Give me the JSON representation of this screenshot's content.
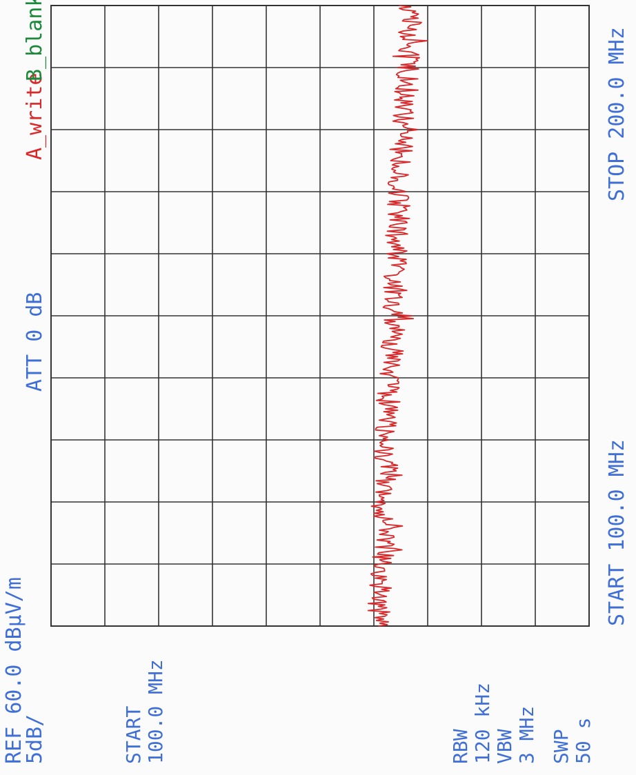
{
  "header": {
    "ref_label": "REF 60.0 dBμV/m",
    "scale_label": "5dB/",
    "att_label": "ATT 0 dB",
    "trace_a_label": "A_write",
    "trace_b_label": "B_blank"
  },
  "left_info": {
    "start_label": "START",
    "start_value": "100.0 MHz",
    "rbw_label": "RBW",
    "rbw_value": "120 kHz",
    "vbw_label": "VBW",
    "vbw_value": "3 MHz",
    "swp_label": "SWP",
    "swp_value": "50 s"
  },
  "bottom_axis": {
    "start_text": "START 100.0 MHz",
    "stop_text": "STOP 200.0 MHz"
  },
  "colors": {
    "text": "#3f6fd6",
    "trace_a": "#d8282a",
    "trace_b": "#1a8a3a",
    "grid": "#333333"
  },
  "chart_data": {
    "type": "line",
    "x_label": "",
    "y_label": "",
    "xlim": [
      100.0,
      200.0
    ],
    "ylim": [
      10.0,
      60.0
    ],
    "x_unit": "MHz",
    "y_unit": "dBμV/m",
    "grid": true,
    "divisions": {
      "x": 10,
      "y": 10
    },
    "series": [
      {
        "name": "A_write",
        "x": [
          100,
          105,
          110,
          115,
          120,
          125,
          130,
          135,
          140,
          145,
          150,
          155,
          160,
          165,
          170,
          175,
          180,
          185,
          190,
          195,
          200
        ],
        "y": [
          29.6,
          29.4,
          29.3,
          29.0,
          29.2,
          28.8,
          29.0,
          28.7,
          28.6,
          28.3,
          28.2,
          28.0,
          27.9,
          27.8,
          27.7,
          27.5,
          27.4,
          27.1,
          26.9,
          26.7,
          26.6
        ]
      }
    ]
  }
}
